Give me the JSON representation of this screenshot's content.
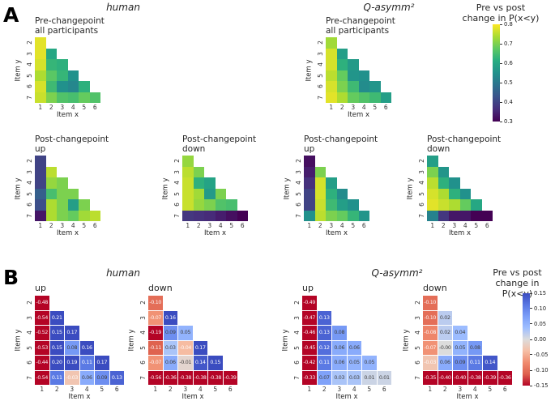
{
  "headers": {
    "panelA_label": "A",
    "panelB_label": "B",
    "A_human_title": "human",
    "A_model_title": "Q-asymm²",
    "B_human_title": "human",
    "B_model_title": "Q-asymm²"
  },
  "colorbars": {
    "A": {
      "title": "Pre vs post\nchange in P(x<y)",
      "cmap": "viridis",
      "vmin": 0.3,
      "vmax": 0.8,
      "ticks": [
        "0.8",
        "0.7",
        "0.6",
        "0.5",
        "0.4",
        "0.3"
      ]
    },
    "B": {
      "title": "Pre vs post\nchange in P(x<y)",
      "cmap": "coolwarm_r",
      "vmin": -0.15,
      "vmax": 0.15,
      "ticks": [
        "0.15",
        "0.10",
        "0.05",
        "0.00",
        "-0.05",
        "-0.10",
        "-0.15"
      ]
    }
  },
  "chart_data": [
    {
      "type": "heatmap",
      "panel": "A",
      "group": "human",
      "title": "Pre-changepoint\nall participants",
      "xlabel": "Item x",
      "ylabel": "Item y",
      "x": [
        1,
        2,
        3,
        4,
        5,
        6
      ],
      "y": [
        2,
        3,
        4,
        5,
        6,
        7
      ],
      "cmap": "viridis",
      "vmin": 0.3,
      "vmax": 0.8,
      "annotated": false,
      "values_are_estimates": true,
      "values": [
        [
          0.78
        ],
        [
          0.78,
          0.6
        ],
        [
          0.77,
          0.63,
          0.62
        ],
        [
          0.74,
          0.67,
          0.63,
          0.55
        ],
        [
          0.77,
          0.64,
          0.55,
          0.53,
          0.62
        ],
        [
          0.76,
          0.7,
          0.66,
          0.65,
          0.68,
          0.66
        ]
      ]
    },
    {
      "type": "heatmap",
      "panel": "A",
      "group": "Q-asymm²",
      "title": "Pre-changepoint\nall participants",
      "xlabel": "Item x",
      "ylabel": "Item y",
      "x": [
        1,
        2,
        3,
        4,
        5,
        6
      ],
      "y": [
        2,
        3,
        4,
        5,
        6,
        7
      ],
      "cmap": "viridis",
      "vmin": 0.3,
      "vmax": 0.8,
      "annotated": false,
      "values_are_estimates": true,
      "values": [
        [
          0.73
        ],
        [
          0.77,
          0.58
        ],
        [
          0.77,
          0.62,
          0.57
        ],
        [
          0.75,
          0.68,
          0.56,
          0.55
        ],
        [
          0.77,
          0.7,
          0.64,
          0.54,
          0.56
        ],
        [
          0.78,
          0.74,
          0.68,
          0.66,
          0.64,
          0.58
        ]
      ]
    },
    {
      "type": "heatmap",
      "panel": "A",
      "group": "human",
      "title": "Post-changepoint\nup",
      "xlabel": "Item x",
      "ylabel": "Item y",
      "x": [
        1,
        2,
        3,
        4,
        5,
        6
      ],
      "y": [
        2,
        3,
        4,
        5,
        6,
        7
      ],
      "cmap": "viridis",
      "vmin": 0.3,
      "vmax": 0.8,
      "annotated": false,
      "values_are_estimates": true,
      "values": [
        [
          0.4
        ],
        [
          0.4,
          0.75
        ],
        [
          0.4,
          0.72,
          0.7
        ],
        [
          0.45,
          0.65,
          0.7,
          0.7
        ],
        [
          0.42,
          0.74,
          0.7,
          0.58,
          0.7
        ],
        [
          0.33,
          0.74,
          0.7,
          0.68,
          0.73,
          0.75
        ]
      ]
    },
    {
      "type": "heatmap",
      "panel": "A",
      "group": "human",
      "title": "Post-changepoint\ndown",
      "xlabel": "Item x",
      "ylabel": "Item y",
      "x": [
        1,
        2,
        3,
        4,
        5,
        6
      ],
      "y": [
        2,
        3,
        4,
        5,
        6,
        7
      ],
      "cmap": "viridis",
      "vmin": 0.3,
      "vmax": 0.8,
      "annotated": false,
      "values_are_estimates": true,
      "values": [
        [
          0.72
        ],
        [
          0.75,
          0.7
        ],
        [
          0.76,
          0.62,
          0.59
        ],
        [
          0.76,
          0.73,
          0.57,
          0.7
        ],
        [
          0.76,
          0.72,
          0.7,
          0.66,
          0.65
        ],
        [
          0.38,
          0.37,
          0.36,
          0.34,
          0.32,
          0.3
        ]
      ]
    },
    {
      "type": "heatmap",
      "panel": "A",
      "group": "Q-asymm²",
      "title": "Post-changepoint\nup",
      "xlabel": "Item x",
      "ylabel": "Item y",
      "x": [
        1,
        2,
        3,
        4,
        5,
        6
      ],
      "y": [
        2,
        3,
        4,
        5,
        6,
        7
      ],
      "cmap": "viridis",
      "vmin": 0.3,
      "vmax": 0.8,
      "annotated": false,
      "values_are_estimates": true,
      "values": [
        [
          0.32
        ],
        [
          0.34,
          0.7
        ],
        [
          0.37,
          0.77,
          0.58
        ],
        [
          0.4,
          0.77,
          0.62,
          0.54
        ],
        [
          0.4,
          0.76,
          0.64,
          0.58,
          0.55
        ],
        [
          0.55,
          0.75,
          0.7,
          0.68,
          0.63,
          0.56
        ]
      ]
    },
    {
      "type": "heatmap",
      "panel": "A",
      "group": "Q-asymm²",
      "title": "Post-changepoint\ndown",
      "xlabel": "Item x",
      "ylabel": "Item y",
      "x": [
        1,
        2,
        3,
        4,
        5,
        6
      ],
      "y": [
        2,
        3,
        4,
        5,
        6,
        7
      ],
      "cmap": "viridis",
      "vmin": 0.3,
      "vmax": 0.8,
      "annotated": false,
      "values_are_estimates": true,
      "values": [
        [
          0.58
        ],
        [
          0.7,
          0.56
        ],
        [
          0.75,
          0.62,
          0.55
        ],
        [
          0.77,
          0.74,
          0.62,
          0.55
        ],
        [
          0.78,
          0.76,
          0.74,
          0.68,
          0.6
        ],
        [
          0.52,
          0.38,
          0.33,
          0.33,
          0.3,
          0.3
        ]
      ]
    },
    {
      "type": "heatmap",
      "panel": "B",
      "group": "human",
      "title": "up",
      "xlabel": "Item x",
      "ylabel": "Item y",
      "x": [
        1,
        2,
        3,
        4,
        5,
        6
      ],
      "y": [
        2,
        3,
        4,
        5,
        6,
        7
      ],
      "cmap": "coolwarm_r",
      "vmin": -0.15,
      "vmax": 0.15,
      "annotated": true,
      "values": [
        [
          -0.48
        ],
        [
          -0.54,
          0.21
        ],
        [
          -0.52,
          0.15,
          0.17
        ],
        [
          -0.53,
          0.15,
          0.08,
          0.16
        ],
        [
          -0.44,
          0.2,
          0.19,
          0.11,
          0.17
        ],
        [
          -0.54,
          0.11,
          -0.03,
          0.06,
          0.09,
          0.13
        ]
      ],
      "annot": [
        [
          "-0.48"
        ],
        [
          "-0.54",
          "0.21"
        ],
        [
          "-0.52",
          "0.15",
          "0.17"
        ],
        [
          "-0.53",
          "0.15",
          "0.08",
          "0.16"
        ],
        [
          "-0.44",
          "0.20",
          "0.19",
          "0.11",
          "0.17"
        ],
        [
          "-0.54",
          "0.11",
          "-0.03",
          "0.06",
          "0.09",
          "0.13"
        ]
      ]
    },
    {
      "type": "heatmap",
      "panel": "B",
      "group": "human",
      "title": "down",
      "xlabel": "Item x",
      "ylabel": "Item y",
      "x": [
        1,
        2,
        3,
        4,
        5,
        6
      ],
      "y": [
        2,
        3,
        4,
        5,
        6,
        7
      ],
      "cmap": "coolwarm_r",
      "vmin": -0.15,
      "vmax": 0.15,
      "annotated": true,
      "values": [
        [
          -0.1
        ],
        [
          -0.07,
          0.16
        ],
        [
          -0.19,
          0.09,
          0.05
        ],
        [
          -0.11,
          0.03,
          -0.04,
          0.17
        ],
        [
          -0.07,
          0.06,
          -0.01,
          0.14,
          0.15
        ],
        [
          -0.56,
          -0.36,
          -0.38,
          -0.38,
          -0.38,
          -0.39
        ]
      ],
      "annot": [
        [
          "-0.10"
        ],
        [
          "-0.07",
          "0.16"
        ],
        [
          "-0.19",
          "0.09",
          "0.05"
        ],
        [
          "-0.11",
          "0.03",
          "-0.04",
          "0.17"
        ],
        [
          "-0.07",
          "0.06",
          "-0.01",
          "0.14",
          "0.15"
        ],
        [
          "-0.56",
          "-0.36",
          "-0.38",
          "-0.38",
          "-0.38",
          "-0.39"
        ]
      ]
    },
    {
      "type": "heatmap",
      "panel": "B",
      "group": "Q-asymm²",
      "title": "up",
      "xlabel": "Item x",
      "ylabel": "Item y",
      "x": [
        1,
        2,
        3,
        4,
        5,
        6
      ],
      "y": [
        2,
        3,
        4,
        5,
        6,
        7
      ],
      "cmap": "coolwarm_r",
      "vmin": -0.15,
      "vmax": 0.15,
      "annotated": true,
      "values": [
        [
          -0.49
        ],
        [
          -0.47,
          0.13
        ],
        [
          -0.46,
          0.13,
          0.08
        ],
        [
          -0.45,
          0.12,
          0.06,
          0.06
        ],
        [
          -0.42,
          0.11,
          0.06,
          0.05,
          0.05
        ],
        [
          -0.33,
          0.07,
          0.03,
          0.03,
          0.01,
          0.01
        ]
      ],
      "annot": [
        [
          "-0.49"
        ],
        [
          "-0.47",
          "0.13"
        ],
        [
          "-0.46",
          "0.13",
          "0.08"
        ],
        [
          "-0.45",
          "0.12",
          "0.06",
          "0.06"
        ],
        [
          "-0.42",
          "0.11",
          "0.06",
          "0.05",
          "0.05"
        ],
        [
          "-0.33",
          "0.07",
          "0.03",
          "0.03",
          "0.01",
          "0.01"
        ]
      ]
    },
    {
      "type": "heatmap",
      "panel": "B",
      "group": "Q-asymm²",
      "title": "down",
      "xlabel": "Item x",
      "ylabel": "Item y",
      "x": [
        1,
        2,
        3,
        4,
        5,
        6
      ],
      "y": [
        2,
        3,
        4,
        5,
        6,
        7
      ],
      "cmap": "coolwarm_r",
      "vmin": -0.15,
      "vmax": 0.15,
      "annotated": true,
      "values": [
        [
          -0.1
        ],
        [
          -0.1,
          0.02
        ],
        [
          -0.08,
          0.02,
          0.04
        ],
        [
          -0.07,
          -0.0,
          0.05,
          0.08
        ],
        [
          -0.03,
          0.06,
          0.09,
          0.11,
          0.14
        ],
        [
          -0.35,
          -0.4,
          -0.4,
          -0.38,
          -0.39,
          -0.36
        ]
      ],
      "annot": [
        [
          "-0.10"
        ],
        [
          "-0.10",
          "0.02"
        ],
        [
          "-0.08",
          "0.02",
          "0.04"
        ],
        [
          "-0.07",
          "-0.00",
          "0.05",
          "0.08"
        ],
        [
          "-0.03",
          "0.06",
          "0.09",
          "0.11",
          "0.14"
        ],
        [
          "-0.35",
          "-0.40",
          "-0.40",
          "-0.38",
          "-0.39",
          "-0.36"
        ]
      ]
    }
  ]
}
